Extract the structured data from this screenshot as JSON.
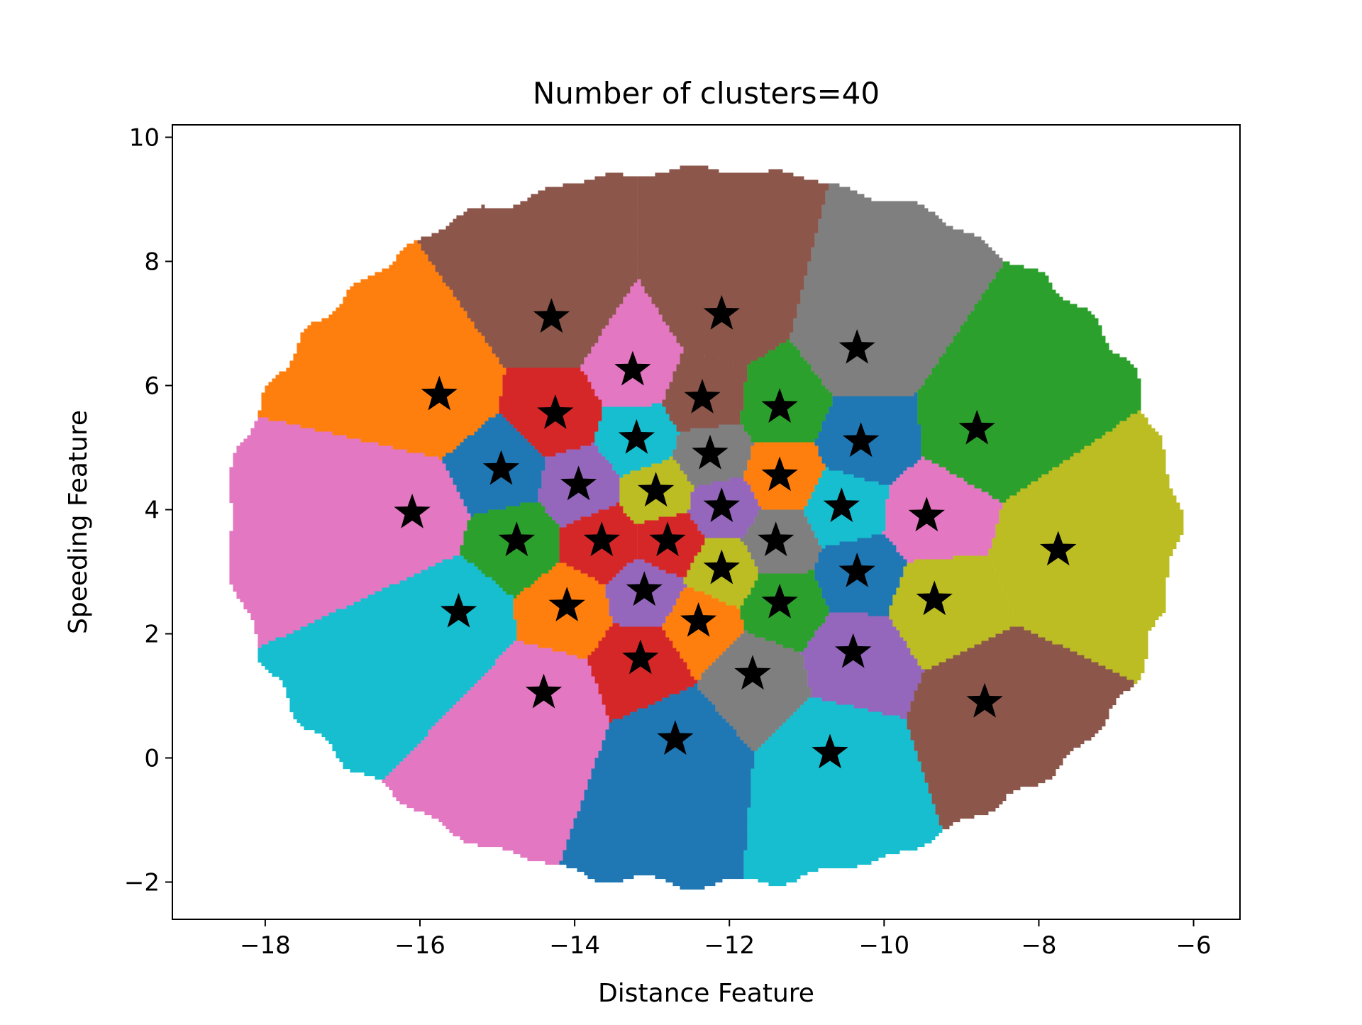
{
  "chart_data": {
    "type": "scatter",
    "title": "Number of clusters=40",
    "xlabel": "Distance Feature",
    "ylabel": "Speeding Feature",
    "xlim": [
      -19.2,
      -5.4
    ],
    "ylim": [
      -2.6,
      10.2
    ],
    "xticks": [
      -18,
      -16,
      -14,
      -12,
      -10,
      -8,
      -6
    ],
    "yticks": [
      -2,
      0,
      2,
      4,
      6,
      8,
      10
    ],
    "xtick_labels": [
      "−18",
      "−16",
      "−14",
      "−12",
      "−10",
      "−8",
      "−6"
    ],
    "ytick_labels": [
      "−2",
      "0",
      "2",
      "4",
      "6",
      "8",
      "10"
    ],
    "grid": false,
    "legend": "none",
    "marker_color": "#000000",
    "palette": [
      "#1f77b4",
      "#ff7f0e",
      "#2ca02c",
      "#d62728",
      "#9467bd",
      "#8c564b",
      "#e377c2",
      "#7f7f7f",
      "#bcbd22",
      "#17becf"
    ],
    "centroids": [
      {
        "x": -14.3,
        "y": 7.1,
        "color": "#8c564b"
      },
      {
        "x": -12.1,
        "y": 7.15,
        "color": "#8c564b"
      },
      {
        "x": -10.35,
        "y": 6.6,
        "color": "#7f7f7f"
      },
      {
        "x": -15.75,
        "y": 5.85,
        "color": "#ff7f0e"
      },
      {
        "x": -13.25,
        "y": 6.25,
        "color": "#e377c2"
      },
      {
        "x": -14.25,
        "y": 5.55,
        "color": "#d62728"
      },
      {
        "x": -12.35,
        "y": 5.8,
        "color": "#8c564b"
      },
      {
        "x": -11.35,
        "y": 5.65,
        "color": "#2ca02c"
      },
      {
        "x": -8.8,
        "y": 5.3,
        "color": "#2ca02c"
      },
      {
        "x": -13.2,
        "y": 5.15,
        "color": "#17becf"
      },
      {
        "x": -10.3,
        "y": 5.1,
        "color": "#1f77b4"
      },
      {
        "x": -12.25,
        "y": 4.9,
        "color": "#7f7f7f"
      },
      {
        "x": -14.95,
        "y": 4.65,
        "color": "#1f77b4"
      },
      {
        "x": -11.35,
        "y": 4.55,
        "color": "#ff7f0e"
      },
      {
        "x": -13.95,
        "y": 4.4,
        "color": "#9467bd"
      },
      {
        "x": -12.95,
        "y": 4.3,
        "color": "#bcbd22"
      },
      {
        "x": -10.55,
        "y": 4.05,
        "color": "#17becf"
      },
      {
        "x": -12.1,
        "y": 4.05,
        "color": "#9467bd"
      },
      {
        "x": -16.1,
        "y": 3.95,
        "color": "#e377c2"
      },
      {
        "x": -9.45,
        "y": 3.9,
        "color": "#e377c2"
      },
      {
        "x": -14.75,
        "y": 3.5,
        "color": "#2ca02c"
      },
      {
        "x": -13.65,
        "y": 3.5,
        "color": "#d62728"
      },
      {
        "x": -12.8,
        "y": 3.5,
        "color": "#d62728"
      },
      {
        "x": -11.4,
        "y": 3.5,
        "color": "#7f7f7f"
      },
      {
        "x": -7.75,
        "y": 3.35,
        "color": "#bcbd22"
      },
      {
        "x": -12.1,
        "y": 3.05,
        "color": "#bcbd22"
      },
      {
        "x": -10.35,
        "y": 3.0,
        "color": "#1f77b4"
      },
      {
        "x": -13.1,
        "y": 2.7,
        "color": "#9467bd"
      },
      {
        "x": -9.35,
        "y": 2.55,
        "color": "#bcbd22"
      },
      {
        "x": -11.35,
        "y": 2.5,
        "color": "#2ca02c"
      },
      {
        "x": -14.1,
        "y": 2.45,
        "color": "#ff7f0e"
      },
      {
        "x": -15.5,
        "y": 2.35,
        "color": "#17becf"
      },
      {
        "x": -12.4,
        "y": 2.2,
        "color": "#ff7f0e"
      },
      {
        "x": -10.4,
        "y": 1.7,
        "color": "#9467bd"
      },
      {
        "x": -13.15,
        "y": 1.6,
        "color": "#d62728"
      },
      {
        "x": -11.7,
        "y": 1.35,
        "color": "#7f7f7f"
      },
      {
        "x": -14.4,
        "y": 1.05,
        "color": "#e377c2"
      },
      {
        "x": -8.7,
        "y": 0.9,
        "color": "#8c564b"
      },
      {
        "x": -12.7,
        "y": 0.3,
        "color": "#1f77b4"
      },
      {
        "x": -10.7,
        "y": 0.08,
        "color": "#17becf"
      }
    ]
  }
}
